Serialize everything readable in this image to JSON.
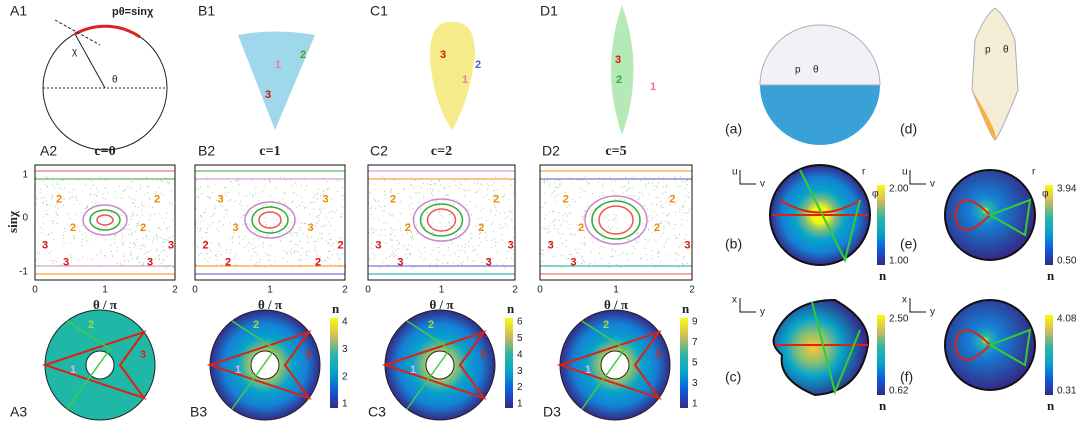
{
  "A1": {
    "label": "A1",
    "formula": "pθ=sinχ",
    "chi": "χ",
    "theta": "θ"
  },
  "B1": {
    "label": "B1",
    "marks": [
      "1",
      "2",
      "3"
    ]
  },
  "C1": {
    "label": "C1",
    "marks": [
      "3",
      "2",
      "1"
    ]
  },
  "D1": {
    "label": "D1",
    "marks": [
      "3",
      "2",
      "1"
    ]
  },
  "A2": {
    "label": "A2",
    "title": "c=0",
    "marks": [
      "2",
      "2",
      "2",
      "2",
      "3",
      "3",
      "3",
      "3"
    ]
  },
  "B2": {
    "label": "B2",
    "title": "c=1",
    "marks": [
      "3",
      "3",
      "3",
      "3",
      "2",
      "2",
      "2",
      "2"
    ]
  },
  "C2": {
    "label": "C2",
    "title": "c=2",
    "marks": [
      "2",
      "2",
      "2",
      "2",
      "3",
      "3",
      "3",
      "3"
    ]
  },
  "D2": {
    "label": "D2",
    "title": "c=5",
    "marks": [
      "2",
      "2",
      "2",
      "2",
      "3",
      "3",
      "3"
    ]
  },
  "y_axis": {
    "label": "sinχ",
    "ticks": [
      "1",
      "0",
      "-1"
    ]
  },
  "x_axis": {
    "label": "θ / π",
    "ticks": [
      "0",
      "1",
      "2"
    ]
  },
  "A3": {
    "label": "A3",
    "marks": [
      "1",
      "2",
      "3"
    ]
  },
  "B3": {
    "label": "B3",
    "marks": [
      "1",
      "2",
      "3"
    ],
    "colorbar": {
      "label": "n",
      "ticks": [
        "1",
        "2",
        "3",
        "4"
      ]
    }
  },
  "C3": {
    "label": "C3",
    "marks": [
      "1",
      "2",
      "3"
    ],
    "colorbar": {
      "label": "n",
      "ticks": [
        "1",
        "2",
        "3",
        "4",
        "5",
        "6"
      ]
    }
  },
  "D3": {
    "label": "D3",
    "marks": [
      "1",
      "2",
      "3"
    ],
    "colorbar": {
      "label": "n",
      "ticks": [
        "1",
        "3",
        "5",
        "7",
        "9"
      ]
    }
  },
  "right": {
    "a": {
      "label": "(a)"
    },
    "b": {
      "label": "(b)",
      "max": "2.00",
      "min": "1.00",
      "unit": "n"
    },
    "c": {
      "label": "(c)",
      "max": "2.50",
      "min": "0.62",
      "unit": "n"
    },
    "d": {
      "label": "(d)"
    },
    "e": {
      "label": "(e)",
      "max": "3.94",
      "min": "0.50",
      "unit": "n"
    },
    "f": {
      "label": "(f)",
      "max": "4.08",
      "min": "0.31",
      "unit": "n"
    },
    "axes": {
      "u": "u",
      "v": "v",
      "x": "x",
      "y": "y",
      "r": "r",
      "phi": "φ",
      "p": "p",
      "theta": "θ"
    }
  }
}
